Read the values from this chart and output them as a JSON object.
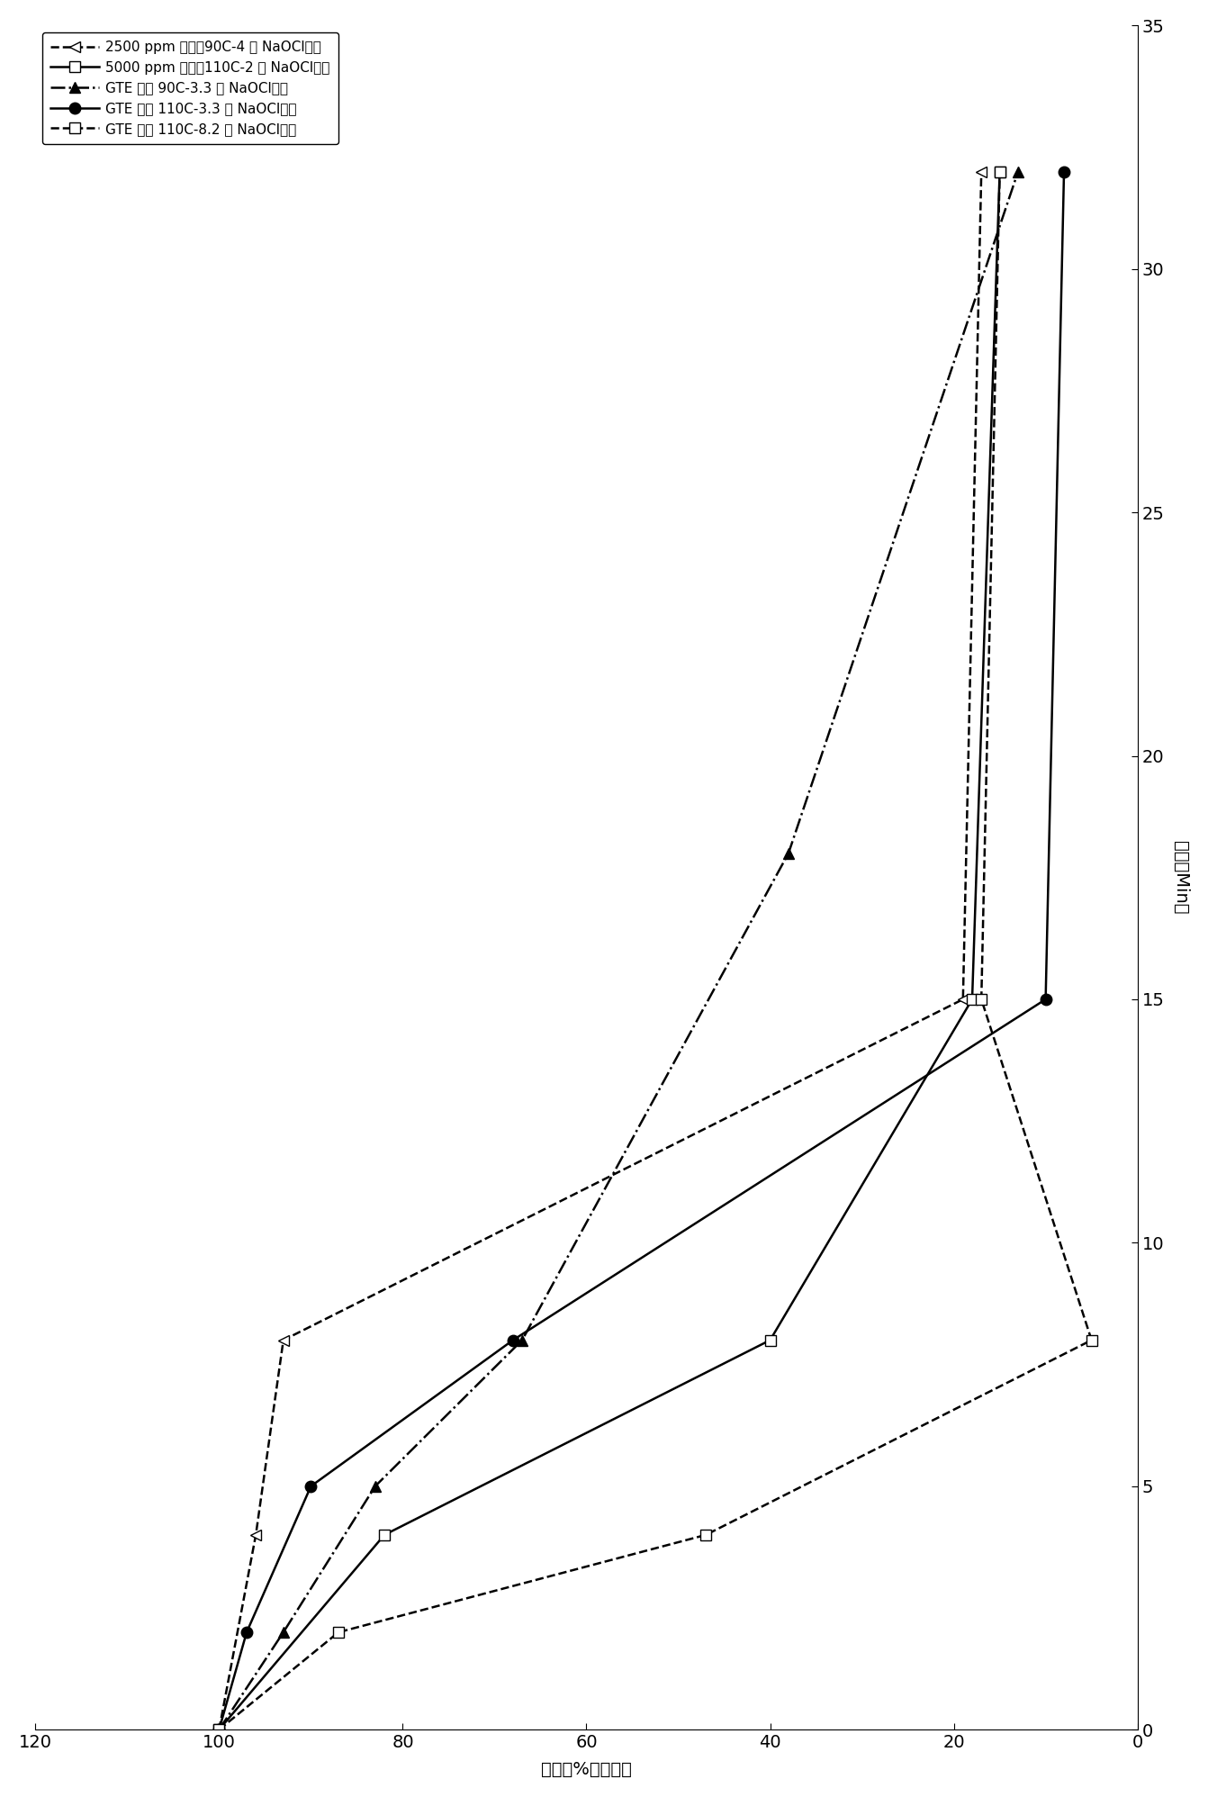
{
  "series": [
    {
      "label": "2500 ppm 甘油，90C-4 倍 NaOCl过量",
      "toc": [
        100,
        96,
        93,
        19,
        17
      ],
      "time": [
        0,
        4,
        8,
        15,
        32
      ],
      "linestyle": "--",
      "marker": "<",
      "markersize": 9,
      "fillstyle": "none",
      "linewidth": 1.8
    },
    {
      "label": "5000 ppm 甘油，110C-2 倍 NaOCl过量",
      "toc": [
        100,
        82,
        40,
        18,
        15
      ],
      "time": [
        0,
        4,
        8,
        15,
        32
      ],
      "linestyle": "-",
      "marker": "s",
      "markersize": 9,
      "fillstyle": "none",
      "linewidth": 1.8
    },
    {
      "label": "GTE 盐水 90C-3.3 倍 NaOCl过量",
      "toc": [
        100,
        93,
        83,
        67,
        38,
        13
      ],
      "time": [
        0,
        2,
        5,
        8,
        18,
        32
      ],
      "linestyle": "-.",
      "marker": "^",
      "markersize": 9,
      "fillstyle": "full",
      "linewidth": 1.8
    },
    {
      "label": "GTE 盐水 110C-3.3 倍 NaOCl过量",
      "toc": [
        100,
        97,
        90,
        68,
        10,
        8
      ],
      "time": [
        0,
        2,
        5,
        8,
        15,
        32
      ],
      "linestyle": "-",
      "marker": "o",
      "markersize": 9,
      "fillstyle": "full",
      "linewidth": 1.8
    },
    {
      "label": "GTE 盐水 110C-8.2 倍 NaOCl过量",
      "toc": [
        100,
        87,
        47,
        5,
        17,
        15
      ],
      "time": [
        0,
        2,
        4,
        8,
        15,
        32
      ],
      "linestyle": "--",
      "marker": "s",
      "markersize": 9,
      "fillstyle": "none",
      "linewidth": 1.8
    }
  ],
  "xlabel_toc": "剩余（%）剖一剩",
  "ylabel_time": "时间（Min）",
  "xlim": [
    120,
    0
  ],
  "ylim": [
    0,
    35
  ],
  "xticks": [
    120,
    100,
    80,
    60,
    40,
    20,
    0
  ],
  "yticks": [
    0,
    5,
    10,
    15,
    20,
    25,
    30,
    35
  ],
  "figsize": [
    13.42,
    19.96
  ],
  "dpi": 100,
  "legend_labels": [
    "2500 ppm 甘油，90C-4 倍 NaOCl过量",
    "5000 ppm 甘油，110C-2 倍 NaOCl过量",
    "GTE 盐水 90C-3.3 倍 NaOCl过量",
    "GTE 盐水 110C-3.3 倍 NaOCl过量",
    "GTE 盐水 110C-8.2 倍 NaOCl过量"
  ]
}
